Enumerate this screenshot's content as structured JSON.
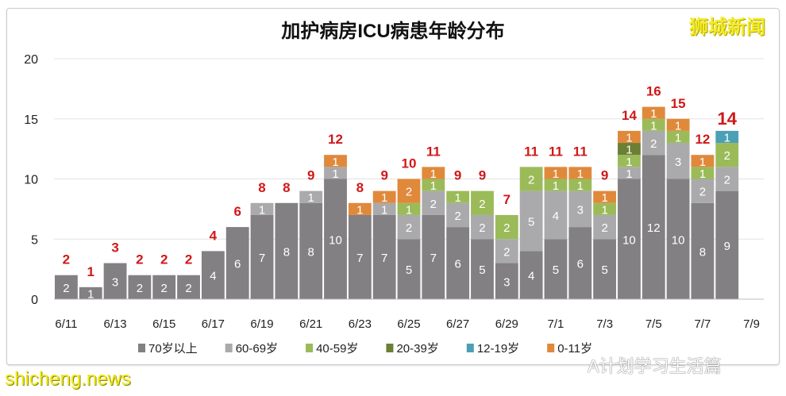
{
  "chart_data": {
    "type": "bar",
    "stacked": true,
    "title": "加护病房ICU病患年龄分布",
    "xlabel": "",
    "ylabel": "",
    "ylim": [
      0,
      20
    ],
    "yticks": [
      0,
      5,
      10,
      15,
      20
    ],
    "grid": true,
    "legend_position": "bottom",
    "categories": [
      "6/11",
      "6/12",
      "6/13",
      "6/14",
      "6/15",
      "6/16",
      "6/17",
      "6/18",
      "6/19",
      "6/20",
      "6/21",
      "6/22",
      "6/23",
      "6/24",
      "6/25",
      "6/26",
      "6/27",
      "6/28",
      "6/29",
      "6/30",
      "7/1",
      "7/2",
      "7/3",
      "7/4",
      "7/5",
      "7/6",
      "7/7",
      "7/8",
      "7/9"
    ],
    "xtick_labels": [
      "6/11",
      "6/13",
      "6/15",
      "6/17",
      "6/19",
      "6/21",
      "6/23",
      "6/25",
      "6/27",
      "6/29",
      "7/1",
      "7/3",
      "7/5",
      "7/7",
      "7/9"
    ],
    "series": [
      {
        "name": "70岁以上",
        "color": "#828083",
        "values": [
          2,
          1,
          3,
          2,
          2,
          2,
          4,
          6,
          7,
          8,
          8,
          10,
          7,
          7,
          5,
          7,
          6,
          5,
          3,
          4,
          5,
          6,
          5,
          10,
          12,
          10,
          8,
          9,
          0
        ]
      },
      {
        "name": "60-69岁",
        "color": "#aaaaac",
        "values": [
          0,
          0,
          0,
          0,
          0,
          0,
          0,
          0,
          1,
          0,
          1,
          1,
          0,
          1,
          2,
          2,
          2,
          2,
          2,
          5,
          4,
          3,
          2,
          1,
          2,
          3,
          2,
          2,
          0
        ]
      },
      {
        "name": "40-59岁",
        "color": "#9bbb59",
        "values": [
          0,
          0,
          0,
          0,
          0,
          0,
          0,
          0,
          0,
          0,
          0,
          0,
          0,
          0,
          1,
          1,
          1,
          2,
          2,
          2,
          1,
          1,
          1,
          1,
          1,
          1,
          1,
          2,
          0
        ]
      },
      {
        "name": "20-39岁",
        "color": "#6b7f35",
        "values": [
          0,
          0,
          0,
          0,
          0,
          0,
          0,
          0,
          0,
          0,
          0,
          0,
          0,
          0,
          0,
          0,
          0,
          0,
          0,
          0,
          0,
          0,
          0,
          1,
          0,
          0,
          0,
          0,
          0
        ]
      },
      {
        "name": "12-19岁",
        "color": "#4ba0b6",
        "values": [
          0,
          0,
          0,
          0,
          0,
          0,
          0,
          0,
          0,
          0,
          0,
          0,
          0,
          0,
          0,
          0,
          0,
          0,
          0,
          0,
          0,
          0,
          0,
          0,
          0,
          0,
          0,
          1,
          0
        ]
      },
      {
        "name": "0-11岁",
        "color": "#e0893b",
        "values": [
          0,
          0,
          0,
          0,
          0,
          0,
          0,
          0,
          0,
          0,
          0,
          1,
          1,
          1,
          2,
          1,
          0,
          0,
          0,
          0,
          1,
          1,
          1,
          1,
          1,
          1,
          1,
          0,
          0
        ]
      }
    ],
    "totals": [
      2,
      1,
      3,
      2,
      2,
      2,
      4,
      6,
      8,
      8,
      9,
      12,
      8,
      9,
      10,
      11,
      9,
      9,
      7,
      11,
      11,
      11,
      9,
      14,
      16,
      15,
      12,
      14,
      null
    ],
    "total_label_color": "#d01818"
  },
  "watermarks": {
    "top_right": "狮城新闻",
    "bottom_left": "shicheng.news",
    "bottom_right": "A计划学习生活篇"
  }
}
